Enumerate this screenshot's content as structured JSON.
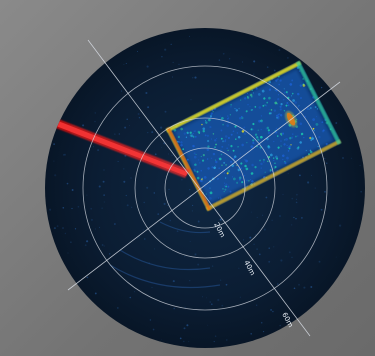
{
  "sonar": {
    "range_labels": [
      "20m",
      "40m",
      "60m"
    ],
    "colors": {
      "background": "#7d7d7d",
      "disc": "#0b1d33",
      "grid_lines": "#d9dee6",
      "beam": "#e01414",
      "echo_low": "#1b5fd0",
      "echo_mid": "#19c7b0",
      "echo_high": "#e8e020",
      "echo_peak": "#e04a10"
    }
  }
}
